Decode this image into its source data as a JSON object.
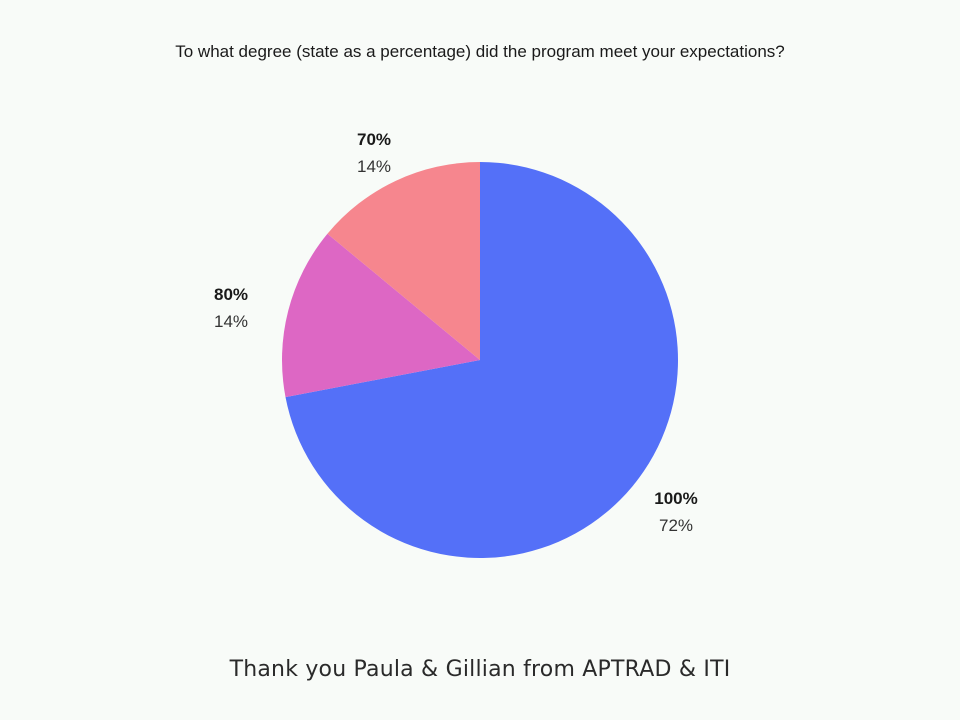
{
  "chart_data": {
    "type": "pie",
    "title": "To what degree (state as a percentage) did the program meet your expectations?",
    "categories": [
      "100%",
      "80%",
      "70%"
    ],
    "values": [
      72,
      14,
      14
    ],
    "value_labels": [
      "72%",
      "14%",
      "14%"
    ],
    "colors": [
      "#5470f8",
      "#dd67c4",
      "#f6868e"
    ]
  },
  "footer": "Thank you Paula & Gillian from APTRAD & ITI"
}
